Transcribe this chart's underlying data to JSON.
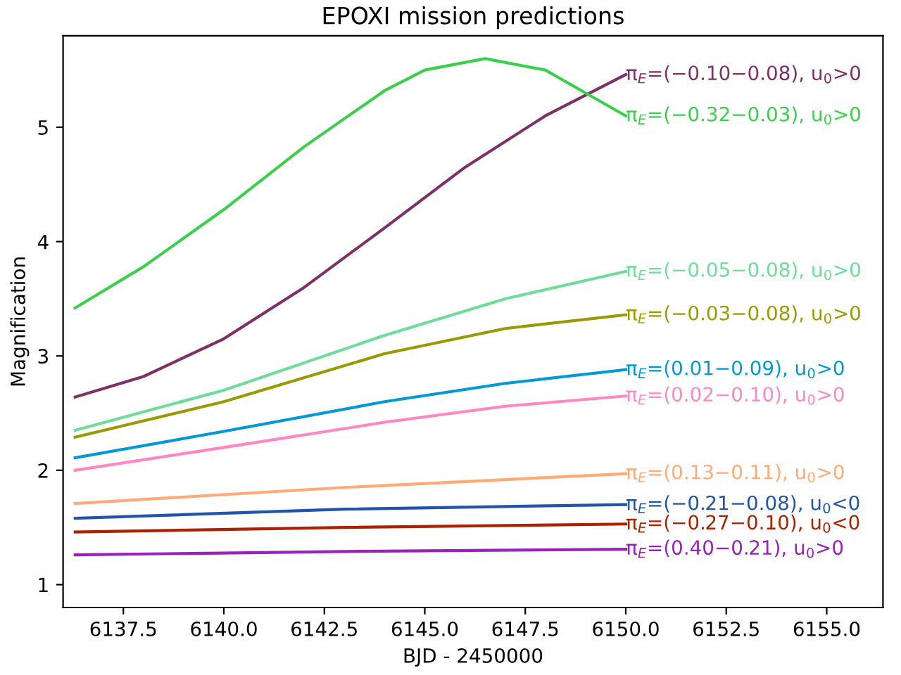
{
  "chart_data": {
    "type": "line",
    "title": "EPOXI mission predictions",
    "xlabel": "BJD - 2450000",
    "ylabel": "Magnification",
    "xlim": [
      6136.0,
      6156.4
    ],
    "xticks": [
      {
        "value": 6137.5,
        "label": "6137.5"
      },
      {
        "value": 6140,
        "label": "6140.0"
      },
      {
        "value": 6142.5,
        "label": "6142.5"
      },
      {
        "value": 6145,
        "label": "6145.0"
      },
      {
        "value": 6147.5,
        "label": "6147.5"
      },
      {
        "value": 6150,
        "label": "6150.0"
      },
      {
        "value": 6152.5,
        "label": "6152.5"
      },
      {
        "value": 6155,
        "label": "6155.0"
      }
    ],
    "ylim": [
      0.8,
      5.8
    ],
    "yticks": [
      1,
      2,
      3,
      4,
      5
    ],
    "grid": false,
    "legend": false,
    "marker": "none",
    "line_style": "solid",
    "series": [
      {
        "name": "π$_{E}$=(−0.10−0.08), u$_{0}$>0",
        "color": "#7f3067",
        "x": [
          6136.3,
          6138,
          6140,
          6142,
          6144,
          6146,
          6148,
          6150
        ],
        "values": [
          2.64,
          2.82,
          3.15,
          3.6,
          4.12,
          4.65,
          5.1,
          5.46
        ]
      },
      {
        "name": "π$_{E}$=(−0.32−0.03), u$_{0}$>0",
        "color": "#3ccf4e",
        "x": [
          6136.3,
          6138,
          6140,
          6142,
          6144,
          6145,
          6146.5,
          6148,
          6149,
          6150
        ],
        "values": [
          3.42,
          3.78,
          4.28,
          4.83,
          5.32,
          5.5,
          5.6,
          5.5,
          5.3,
          5.1
        ]
      },
      {
        "name": "π$_{E}$=(−0.05−0.08), u$_{0}$>0",
        "color": "#6ddd99",
        "x": [
          6136.3,
          6140,
          6144,
          6147,
          6150
        ],
        "values": [
          2.35,
          2.7,
          3.18,
          3.5,
          3.74
        ]
      },
      {
        "name": "π$_{E}$=(−0.03−0.08), u$_{0}$>0",
        "color": "#9a9a00",
        "x": [
          6136.3,
          6140,
          6144,
          6147,
          6150
        ],
        "values": [
          2.29,
          2.6,
          3.02,
          3.24,
          3.36
        ]
      },
      {
        "name": "π$_{E}$=(0.01−0.09), u$_{0}$>0",
        "color": "#0099d6",
        "x": [
          6136.3,
          6140,
          6144,
          6147,
          6150
        ],
        "values": [
          2.11,
          2.34,
          2.6,
          2.76,
          2.88
        ]
      },
      {
        "name": "π$_{E}$=(0.02−0.10), u$_{0}$>0",
        "color": "#ff88c4",
        "x": [
          6136.3,
          6140,
          6144,
          6147,
          6150
        ],
        "values": [
          2.0,
          2.2,
          2.42,
          2.56,
          2.65
        ]
      },
      {
        "name": "π$_{E}$=(0.13−0.11), u$_{0}$>0",
        "color": "#ffaa77",
        "x": [
          6136.3,
          6143,
          6150
        ],
        "values": [
          1.71,
          1.85,
          1.97
        ]
      },
      {
        "name": "π$_{E}$=(−0.21−0.08), u$_{0}$<0",
        "color": "#2255aa",
        "x": [
          6136.3,
          6143,
          6150
        ],
        "values": [
          1.58,
          1.66,
          1.7
        ]
      },
      {
        "name": "π$_{E}$=(−0.27−0.10), u$_{0}$<0",
        "color": "#aa2200",
        "x": [
          6136.3,
          6143,
          6150
        ],
        "values": [
          1.46,
          1.5,
          1.53
        ]
      },
      {
        "name": "π$_{E}$=(0.40−0.21), u$_{0}$>0",
        "color": "#9922bb",
        "x": [
          6136.3,
          6143,
          6150
        ],
        "values": [
          1.26,
          1.29,
          1.31
        ]
      }
    ]
  }
}
